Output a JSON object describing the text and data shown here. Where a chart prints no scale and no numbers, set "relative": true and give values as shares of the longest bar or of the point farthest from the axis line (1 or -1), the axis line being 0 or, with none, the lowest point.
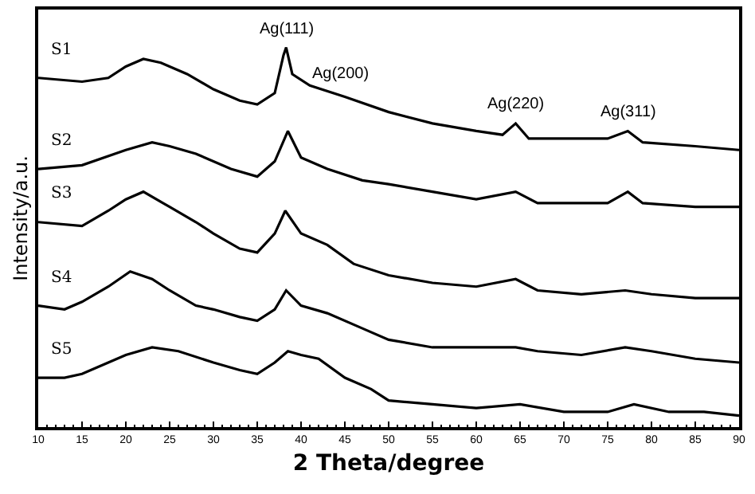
{
  "chart_data": {
    "type": "line",
    "relative": true,
    "xlabel": "2 Theta/degree",
    "ylabel": "Intensity/a.u.",
    "xlim": [
      10,
      90
    ],
    "xticks": [
      10,
      15,
      20,
      25,
      30,
      35,
      40,
      45,
      50,
      55,
      60,
      65,
      70,
      75,
      80,
      85,
      90
    ],
    "grid": false,
    "legend": false,
    "marker": "none",
    "line_style": "solid",
    "series": [
      {
        "name": "S1",
        "color": "#000000",
        "x": [
          10,
          15,
          18,
          20,
          22,
          24,
          27,
          30,
          33,
          35,
          37,
          38,
          38.3,
          39,
          41,
          45,
          50,
          55,
          60,
          63,
          64.5,
          66,
          70,
          75,
          77.3,
          79,
          85,
          90
        ],
        "values": [
          0.92,
          0.91,
          0.92,
          0.95,
          0.97,
          0.96,
          0.93,
          0.89,
          0.86,
          0.85,
          0.88,
          0.98,
          1.0,
          0.93,
          0.9,
          0.87,
          0.83,
          0.8,
          0.78,
          0.77,
          0.8,
          0.76,
          0.76,
          0.76,
          0.78,
          0.75,
          0.74,
          0.73
        ]
      },
      {
        "name": "S2",
        "color": "#000000",
        "x": [
          10,
          15,
          20,
          23,
          25,
          28,
          32,
          35,
          37,
          38.5,
          40,
          43,
          47,
          50,
          55,
          60,
          64.5,
          67,
          70,
          75,
          77.3,
          79,
          85,
          90
        ],
        "values": [
          0.68,
          0.69,
          0.73,
          0.75,
          0.74,
          0.72,
          0.68,
          0.66,
          0.7,
          0.78,
          0.71,
          0.68,
          0.65,
          0.64,
          0.62,
          0.6,
          0.62,
          0.59,
          0.59,
          0.59,
          0.62,
          0.59,
          0.58,
          0.58
        ]
      },
      {
        "name": "S3",
        "color": "#000000",
        "x": [
          10,
          15,
          18,
          20,
          22,
          25,
          28,
          30,
          33,
          35,
          37,
          38.2,
          40,
          43,
          46,
          50,
          55,
          60,
          64.5,
          67,
          72,
          77,
          80,
          85,
          90
        ],
        "values": [
          0.54,
          0.53,
          0.57,
          0.6,
          0.62,
          0.58,
          0.54,
          0.51,
          0.47,
          0.46,
          0.51,
          0.57,
          0.51,
          0.48,
          0.43,
          0.4,
          0.38,
          0.37,
          0.39,
          0.36,
          0.35,
          0.36,
          0.35,
          0.34,
          0.34
        ]
      },
      {
        "name": "S4",
        "color": "#000000",
        "x": [
          10,
          13,
          15,
          18,
          20.5,
          23,
          25,
          28,
          30,
          33,
          35,
          37,
          38.3,
          40,
          43,
          47,
          50,
          55,
          60,
          64.5,
          67,
          72,
          77,
          80,
          85,
          90
        ],
        "values": [
          0.32,
          0.31,
          0.33,
          0.37,
          0.41,
          0.39,
          0.36,
          0.32,
          0.31,
          0.29,
          0.28,
          0.31,
          0.36,
          0.32,
          0.3,
          0.26,
          0.23,
          0.21,
          0.21,
          0.21,
          0.2,
          0.19,
          0.21,
          0.2,
          0.18,
          0.17
        ]
      },
      {
        "name": "S5",
        "color": "#000000",
        "x": [
          10,
          13,
          15,
          18,
          20,
          23,
          26,
          30,
          33,
          35,
          37,
          38.5,
          40,
          42,
          45,
          48,
          50,
          55,
          60,
          65,
          70,
          75,
          78,
          82,
          86,
          90
        ],
        "values": [
          0.13,
          0.13,
          0.14,
          0.17,
          0.19,
          0.21,
          0.2,
          0.17,
          0.15,
          0.14,
          0.17,
          0.2,
          0.19,
          0.18,
          0.13,
          0.1,
          0.07,
          0.06,
          0.05,
          0.06,
          0.04,
          0.04,
          0.06,
          0.04,
          0.04,
          0.03
        ]
      }
    ],
    "annotations": [
      {
        "text": "Ag(111)",
        "x": 38.3,
        "y": 1.0
      },
      {
        "text": "Ag(200)",
        "x": 44.5,
        "y": 0.88
      },
      {
        "text": "Ag(220)",
        "x": 64.5,
        "y": 0.8
      },
      {
        "text": "Ag(311)",
        "x": 77.3,
        "y": 0.78
      }
    ]
  }
}
